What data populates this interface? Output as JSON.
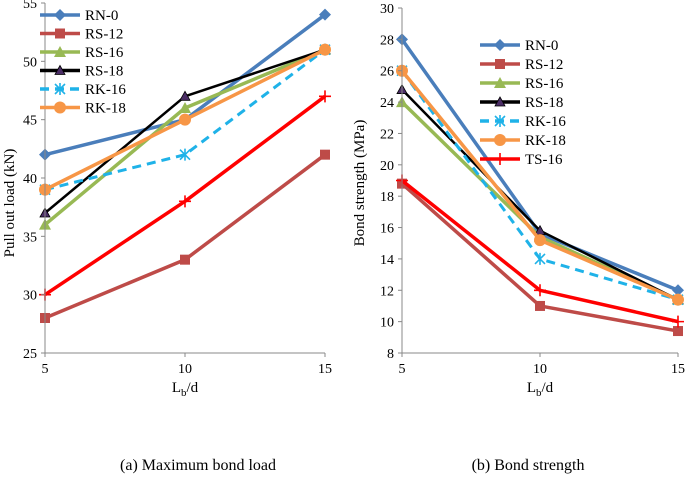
{
  "chart_data": [
    {
      "type": "line",
      "id": "left",
      "caption": "(a) Maximum bond load",
      "ylabel": "Pull out load (kN)",
      "xlabel_main": "L",
      "xlabel_sub": "b",
      "xlabel_tail": "/d",
      "x": [
        5,
        10,
        15
      ],
      "ylim": [
        25,
        55
      ],
      "yticks": [
        25,
        30,
        35,
        40,
        45,
        50,
        55
      ],
      "series": [
        {
          "name": "RN-0",
          "values": [
            42,
            45,
            54
          ],
          "color": "#4A7EBB",
          "marker": "diamond",
          "dash": "solid"
        },
        {
          "name": "RS-12",
          "values": [
            28,
            33,
            42
          ],
          "color": "#BE4B48",
          "marker": "square",
          "dash": "solid"
        },
        {
          "name": "RS-16",
          "values": [
            36,
            46,
            51
          ],
          "color": "#98B954",
          "marker": "triangle",
          "dash": "solid"
        },
        {
          "name": "RS-18",
          "values": [
            37,
            47,
            51
          ],
          "color": "#000000",
          "marker": "triangle-dark",
          "dash": "solid"
        },
        {
          "name": "RK-16",
          "values": [
            39,
            42,
            51
          ],
          "color": "#1FB2E8",
          "marker": "asterisk",
          "dash": "dashed"
        },
        {
          "name": "RK-18",
          "values": [
            39,
            45,
            51
          ],
          "color": "#F79646",
          "marker": "circle",
          "dash": "solid"
        },
        {
          "name": "TS-16",
          "values": [
            30,
            38,
            47
          ],
          "color": "#FF0000",
          "marker": "plus",
          "dash": "solid",
          "legend": false
        }
      ]
    },
    {
      "type": "line",
      "id": "right",
      "caption": "(b) Bond strength",
      "ylabel": "Bond strength (MPa)",
      "xlabel_main": "L",
      "xlabel_sub": "b",
      "xlabel_tail": "/d",
      "x": [
        5,
        10,
        15
      ],
      "ylim": [
        8,
        30
      ],
      "yticks": [
        8,
        10,
        12,
        14,
        16,
        18,
        20,
        22,
        24,
        26,
        28,
        30
      ],
      "series": [
        {
          "name": "RN-0",
          "values": [
            28,
            15.6,
            12
          ],
          "color": "#4A7EBB",
          "marker": "diamond",
          "dash": "solid"
        },
        {
          "name": "RS-12",
          "values": [
            18.8,
            11,
            9.4
          ],
          "color": "#BE4B48",
          "marker": "square",
          "dash": "solid"
        },
        {
          "name": "RS-16",
          "values": [
            24,
            15.4,
            11.4
          ],
          "color": "#98B954",
          "marker": "triangle",
          "dash": "solid"
        },
        {
          "name": "RS-18",
          "values": [
            24.8,
            15.8,
            11.4
          ],
          "color": "#000000",
          "marker": "triangle-dark",
          "dash": "solid"
        },
        {
          "name": "RK-16",
          "values": [
            26,
            14,
            11.4
          ],
          "color": "#1FB2E8",
          "marker": "asterisk",
          "dash": "dashed"
        },
        {
          "name": "RK-18",
          "values": [
            26,
            15.2,
            11.4
          ],
          "color": "#F79646",
          "marker": "circle",
          "dash": "solid"
        },
        {
          "name": "TS-16",
          "values": [
            19,
            12,
            10
          ],
          "color": "#FF0000",
          "marker": "plus",
          "dash": "solid"
        }
      ]
    }
  ]
}
